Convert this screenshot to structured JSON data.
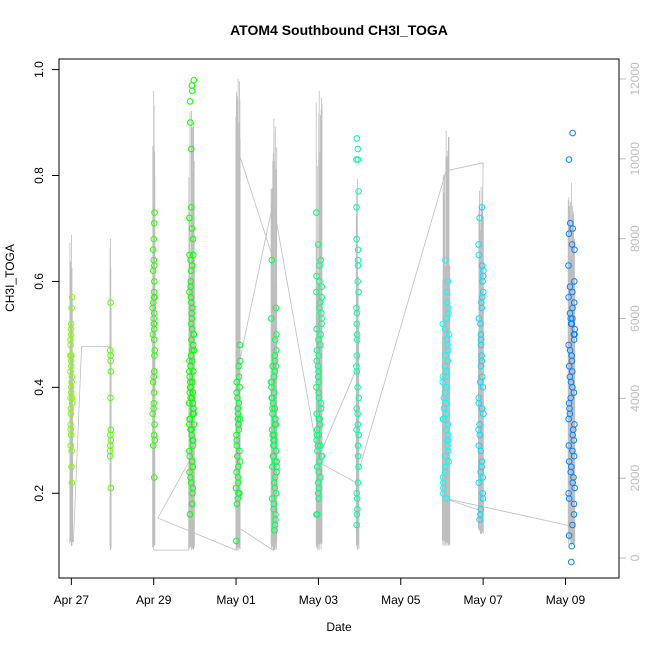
{
  "chart_data": {
    "type": "scatter",
    "title": "ATOM4 Southbound CH3I_TOGA",
    "xlabel": "Date",
    "ylabel": "CH3I_TOGA",
    "xlim": [
      -0.3,
      13.3
    ],
    "ylim": [
      0.04,
      1.02
    ],
    "x_ticks": [
      {
        "value": 0,
        "label": "Apr 27"
      },
      {
        "value": 2,
        "label": "Apr 29"
      },
      {
        "value": 4,
        "label": "May 01"
      },
      {
        "value": 6,
        "label": "May 03"
      },
      {
        "value": 8,
        "label": "May 05"
      },
      {
        "value": 10,
        "label": "May 07"
      },
      {
        "value": 12,
        "label": "May 09"
      }
    ],
    "y_ticks": [
      {
        "value": 0.2,
        "label": "0.2"
      },
      {
        "value": 0.4,
        "label": "0.4"
      },
      {
        "value": 0.6,
        "label": "0.6"
      },
      {
        "value": 0.8,
        "label": "0.8"
      },
      {
        "value": 1.0,
        "label": "1.0"
      }
    ],
    "secondary_axis": {
      "label": "",
      "ylim": [
        -500,
        12500
      ],
      "ticks": [
        {
          "value": 0,
          "label": "0"
        },
        {
          "value": 2000,
          "label": "2000"
        },
        {
          "value": 4000,
          "label": "4000"
        },
        {
          "value": 6000,
          "label": "6000"
        },
        {
          "value": 8000,
          "label": "8000"
        },
        {
          "value": 10000,
          "label": "10000"
        },
        {
          "value": 12000,
          "label": "12000"
        }
      ]
    },
    "point_color_start": "#80ff00",
    "point_color_end": "#0080ff",
    "line_color": "#bebebe",
    "clusters": [
      {
        "x": 0.0,
        "width": 0.05,
        "ys": [
          0.57,
          0.55,
          0.52,
          0.51,
          0.5,
          0.49,
          0.48,
          0.46,
          0.46,
          0.45,
          0.43,
          0.41,
          0.4,
          0.39,
          0.38,
          0.37,
          0.36,
          0.35,
          0.33,
          0.32,
          0.31,
          0.29,
          0.28,
          0.25,
          0.22,
          0.42,
          0.44,
          0.38
        ]
      },
      {
        "x": 0.95,
        "width": 0.02,
        "ys": [
          0.56,
          0.47,
          0.46,
          0.45,
          0.43,
          0.38,
          0.32,
          0.31,
          0.3,
          0.28,
          0.27,
          0.29,
          0.21
        ]
      },
      {
        "x": 2.0,
        "width": 0.05,
        "ys": [
          0.73,
          0.71,
          0.68,
          0.66,
          0.64,
          0.63,
          0.62,
          0.6,
          0.58,
          0.57,
          0.57,
          0.56,
          0.55,
          0.54,
          0.53,
          0.52,
          0.52,
          0.51,
          0.5,
          0.49,
          0.47,
          0.46,
          0.43,
          0.42,
          0.41,
          0.39,
          0.37,
          0.36,
          0.35,
          0.33,
          0.31,
          0.3,
          0.29,
          0.23
        ]
      },
      {
        "x": 2.92,
        "width": 0.12,
        "ys": [
          0.98,
          0.97,
          0.96,
          0.94,
          0.9,
          0.85,
          0.74,
          0.72,
          0.7,
          0.68,
          0.65,
          0.65,
          0.64,
          0.63,
          0.62,
          0.6,
          0.59,
          0.58,
          0.57,
          0.56,
          0.55,
          0.54,
          0.53,
          0.52,
          0.51,
          0.5,
          0.5,
          0.49,
          0.48,
          0.47,
          0.47,
          0.46,
          0.45,
          0.45,
          0.44,
          0.43,
          0.43,
          0.42,
          0.41,
          0.41,
          0.4,
          0.4,
          0.39,
          0.39,
          0.38,
          0.38,
          0.37,
          0.37,
          0.36,
          0.36,
          0.35,
          0.35,
          0.34,
          0.34,
          0.33,
          0.33,
          0.32,
          0.32,
          0.31,
          0.3,
          0.3,
          0.29,
          0.28,
          0.27,
          0.26,
          0.25,
          0.24,
          0.23,
          0.22,
          0.21,
          0.2,
          0.18,
          0.16
        ]
      },
      {
        "x": 4.05,
        "width": 0.1,
        "ys": [
          0.48,
          0.45,
          0.44,
          0.42,
          0.41,
          0.4,
          0.39,
          0.38,
          0.37,
          0.36,
          0.35,
          0.34,
          0.34,
          0.33,
          0.32,
          0.31,
          0.3,
          0.29,
          0.28,
          0.27,
          0.26,
          0.25,
          0.24,
          0.23,
          0.22,
          0.21,
          0.2,
          0.2,
          0.19,
          0.18,
          0.11,
          0.33,
          0.36
        ]
      },
      {
        "x": 4.92,
        "width": 0.14,
        "ys": [
          0.64,
          0.55,
          0.53,
          0.5,
          0.49,
          0.47,
          0.46,
          0.45,
          0.44,
          0.44,
          0.43,
          0.42,
          0.41,
          0.41,
          0.4,
          0.4,
          0.39,
          0.38,
          0.38,
          0.37,
          0.36,
          0.36,
          0.35,
          0.34,
          0.34,
          0.33,
          0.33,
          0.32,
          0.31,
          0.31,
          0.3,
          0.3,
          0.29,
          0.29,
          0.28,
          0.28,
          0.27,
          0.27,
          0.26,
          0.26,
          0.25,
          0.25,
          0.24,
          0.24,
          0.23,
          0.22,
          0.21,
          0.2,
          0.19,
          0.18,
          0.17,
          0.16,
          0.15,
          0.14,
          0.13
        ]
      },
      {
        "x": 6.02,
        "width": 0.14,
        "ys": [
          0.73,
          0.67,
          0.64,
          0.63,
          0.61,
          0.6,
          0.59,
          0.58,
          0.57,
          0.56,
          0.55,
          0.54,
          0.53,
          0.52,
          0.51,
          0.5,
          0.49,
          0.48,
          0.47,
          0.46,
          0.45,
          0.44,
          0.43,
          0.42,
          0.41,
          0.4,
          0.39,
          0.38,
          0.37,
          0.36,
          0.35,
          0.34,
          0.34,
          0.33,
          0.32,
          0.31,
          0.31,
          0.3,
          0.29,
          0.29,
          0.28,
          0.27,
          0.27,
          0.26,
          0.25,
          0.24,
          0.23,
          0.22,
          0.21,
          0.2,
          0.19,
          0.16,
          0.16
        ]
      },
      {
        "x": 6.95,
        "width": 0.06,
        "ys": [
          0.87,
          0.85,
          0.83,
          0.83,
          0.77,
          0.74,
          0.68,
          0.66,
          0.64,
          0.63,
          0.6,
          0.58,
          0.55,
          0.54,
          0.52,
          0.5,
          0.49,
          0.46,
          0.44,
          0.43,
          0.4,
          0.38,
          0.36,
          0.35,
          0.33,
          0.32,
          0.31,
          0.29,
          0.27,
          0.25,
          0.22,
          0.2,
          0.19,
          0.17,
          0.16,
          0.14
        ]
      },
      {
        "x": 9.1,
        "width": 0.16,
        "ys": [
          0.64,
          0.6,
          0.58,
          0.56,
          0.55,
          0.54,
          0.53,
          0.52,
          0.51,
          0.5,
          0.49,
          0.48,
          0.47,
          0.46,
          0.45,
          0.44,
          0.43,
          0.42,
          0.42,
          0.41,
          0.4,
          0.4,
          0.39,
          0.38,
          0.37,
          0.36,
          0.35,
          0.34,
          0.34,
          0.33,
          0.32,
          0.31,
          0.3,
          0.3,
          0.29,
          0.28,
          0.27,
          0.26,
          0.25,
          0.24,
          0.23,
          0.22,
          0.21,
          0.2,
          0.19
        ]
      },
      {
        "x": 9.95,
        "width": 0.12,
        "ys": [
          0.74,
          0.72,
          0.67,
          0.65,
          0.63,
          0.62,
          0.61,
          0.6,
          0.58,
          0.57,
          0.56,
          0.55,
          0.53,
          0.52,
          0.5,
          0.49,
          0.48,
          0.46,
          0.45,
          0.44,
          0.42,
          0.41,
          0.4,
          0.38,
          0.37,
          0.36,
          0.35,
          0.33,
          0.32,
          0.31,
          0.29,
          0.28,
          0.26,
          0.25,
          0.24,
          0.23,
          0.22,
          0.2,
          0.19,
          0.17,
          0.16,
          0.15
        ]
      },
      {
        "x": 12.15,
        "width": 0.16,
        "ys": [
          0.88,
          0.83,
          0.71,
          0.7,
          0.69,
          0.67,
          0.66,
          0.63,
          0.6,
          0.59,
          0.58,
          0.57,
          0.56,
          0.55,
          0.54,
          0.53,
          0.53,
          0.52,
          0.52,
          0.51,
          0.5,
          0.5,
          0.49,
          0.48,
          0.47,
          0.46,
          0.45,
          0.44,
          0.43,
          0.42,
          0.41,
          0.4,
          0.39,
          0.38,
          0.37,
          0.36,
          0.35,
          0.34,
          0.33,
          0.32,
          0.31,
          0.3,
          0.29,
          0.28,
          0.27,
          0.26,
          0.25,
          0.24,
          0.23,
          0.22,
          0.21,
          0.2,
          0.19,
          0.18,
          0.16,
          0.14,
          0.12,
          0.1,
          0.07
        ]
      }
    ],
    "spikes": [
      {
        "x": 0.0,
        "width": 0.06,
        "top": 8100,
        "bottom": 300
      },
      {
        "x": 0.95,
        "width": 0.03,
        "top": 8000,
        "bottom": 200
      },
      {
        "x": 2.0,
        "width": 0.06,
        "top": 11700,
        "bottom": 200
      },
      {
        "x": 2.92,
        "width": 0.14,
        "top": 11200,
        "bottom": 200
      },
      {
        "x": 4.05,
        "width": 0.1,
        "top": 12000,
        "bottom": 200
      },
      {
        "x": 4.92,
        "width": 0.14,
        "top": 11000,
        "bottom": 200
      },
      {
        "x": 6.02,
        "width": 0.14,
        "top": 11700,
        "bottom": 200
      },
      {
        "x": 6.95,
        "width": 0.06,
        "top": 9500,
        "bottom": 200
      },
      {
        "x": 9.1,
        "width": 0.18,
        "top": 10700,
        "bottom": 300
      },
      {
        "x": 9.95,
        "width": 0.12,
        "top": 9300,
        "bottom": 600
      },
      {
        "x": 12.15,
        "width": 0.16,
        "top": 9400,
        "bottom": 300
      }
    ],
    "track_lines": [
      [
        [
          0.05,
          400
        ],
        [
          0.25,
          5300
        ],
        [
          0.95,
          5300
        ],
        [
          0.95,
          200
        ]
      ],
      [
        [
          2.0,
          200
        ],
        [
          2.85,
          200
        ],
        [
          2.85,
          2400
        ],
        [
          2.1,
          1000
        ],
        [
          4.0,
          200
        ],
        [
          4.05,
          10200
        ],
        [
          4.9,
          7500
        ],
        [
          4.9,
          200
        ],
        [
          4.0,
          800
        ],
        [
          4.1,
          700
        ]
      ],
      [
        [
          4.1,
          5000
        ],
        [
          4.9,
          8900
        ],
        [
          6.0,
          2500
        ],
        [
          6.95,
          4800
        ]
      ],
      [
        [
          6.0,
          2400
        ],
        [
          6.9,
          1900
        ],
        [
          9.1,
          9700
        ],
        [
          10.0,
          9900
        ],
        [
          9.9,
          1200
        ],
        [
          9.05,
          1500
        ],
        [
          12.15,
          800
        ]
      ]
    ]
  }
}
